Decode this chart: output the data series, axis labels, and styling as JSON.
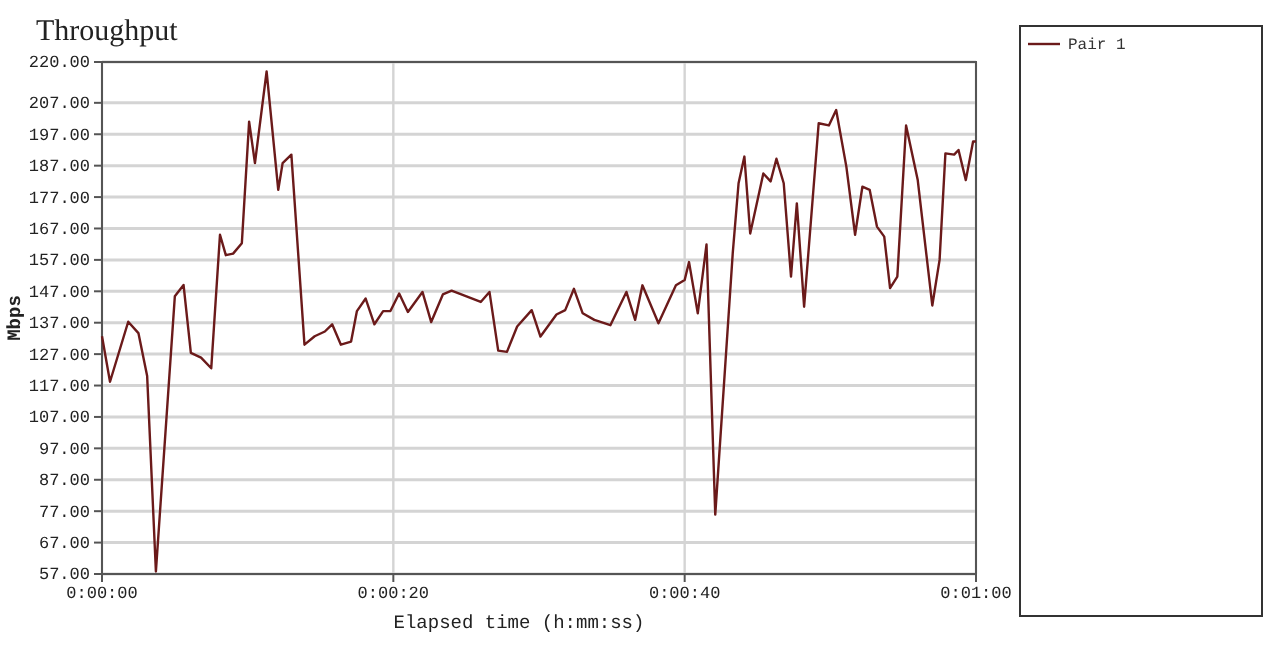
{
  "chart_data": {
    "type": "line",
    "title": "Throughput",
    "xlabel": "Elapsed time (h:mm:ss)",
    "ylabel": "Mbps",
    "xlim": [
      0,
      60
    ],
    "xticks": [
      {
        "value": 0,
        "label": "0:00:00"
      },
      {
        "value": 20,
        "label": "0:00:20"
      },
      {
        "value": 40,
        "label": "0:00:40"
      },
      {
        "value": 60,
        "label": "0:01:00"
      }
    ],
    "ylim": [
      57,
      220
    ],
    "yticks": [
      {
        "value": 57,
        "label": "57.00"
      },
      {
        "value": 67,
        "label": "67.00"
      },
      {
        "value": 77,
        "label": "77.00"
      },
      {
        "value": 87,
        "label": "87.00"
      },
      {
        "value": 97,
        "label": "97.00"
      },
      {
        "value": 107,
        "label": "107.00"
      },
      {
        "value": 117,
        "label": "117.00"
      },
      {
        "value": 127,
        "label": "127.00"
      },
      {
        "value": 137,
        "label": "137.00"
      },
      {
        "value": 147,
        "label": "147.00"
      },
      {
        "value": 157,
        "label": "157.00"
      },
      {
        "value": 167,
        "label": "167.00"
      },
      {
        "value": 177,
        "label": "177.00"
      },
      {
        "value": 187,
        "label": "187.00"
      },
      {
        "value": 197,
        "label": "197.00"
      },
      {
        "value": 207,
        "label": "207.00"
      },
      {
        "value": 220,
        "label": "220.00"
      }
    ],
    "grid": true,
    "legend": "right",
    "marker": "none",
    "line_style": "solid",
    "series": [
      {
        "name": "Pair 1",
        "color": "#6b1a1a",
        "x": [
          0,
          0.55,
          1.8,
          2.5,
          3.1,
          3.7,
          5,
          5.6,
          6.1,
          6.8,
          7.5,
          8.1,
          8.5,
          9,
          9.6,
          10.1,
          10.5,
          11.3,
          12.1,
          12.4,
          13,
          13.9,
          14.6,
          15.3,
          15.8,
          16.4,
          17.1,
          17.5,
          18.1,
          18.7,
          19.3,
          19.8,
          20.4,
          21,
          22,
          22.6,
          23.4,
          24,
          26,
          26.6,
          27.2,
          27.8,
          28.5,
          29.5,
          30.1,
          31.2,
          31.8,
          32.4,
          33,
          33.8,
          34.9,
          36,
          36.6,
          37.1,
          38.2,
          39.4,
          40,
          40.3,
          40.9,
          41.5,
          42.1,
          43.3,
          43.7,
          44.1,
          44.5,
          45,
          45.4,
          45.9,
          46.3,
          46.8,
          47.3,
          47.7,
          48.2,
          49.2,
          49.9,
          50.4,
          51.1,
          51.7,
          52.2,
          52.7,
          53.2,
          53.7,
          54.1,
          54.6,
          55.2,
          56,
          57,
          57.5,
          57.9,
          58.5,
          58.8,
          59.3,
          59.8,
          60
        ],
        "values": [
          132.7,
          118.2,
          137.3,
          133.7,
          120,
          57.8,
          145.4,
          149,
          127.4,
          125.9,
          122.5,
          165,
          158.5,
          159,
          162.3,
          201,
          187.8,
          217,
          179.3,
          187.8,
          190.5,
          130,
          132.7,
          134.2,
          136.5,
          130,
          131,
          140.7,
          144.7,
          136.5,
          140.7,
          140.7,
          146.3,
          140.4,
          146.8,
          137.2,
          146,
          147.2,
          143.6,
          146.8,
          128.1,
          127.7,
          135.8,
          141,
          132.6,
          139.6,
          141,
          147.8,
          140,
          137.9,
          136.2,
          146.8,
          137.9,
          148.9,
          136.8,
          148.9,
          150.6,
          156.3,
          140,
          161.9,
          75.9,
          159.1,
          181.4,
          189.9,
          165.4,
          176,
          184.5,
          182,
          189.2,
          181.4,
          151.7,
          175,
          142.1,
          200.5,
          199.8,
          204.7,
          186.7,
          165,
          180.3,
          179.3,
          167.6,
          164.4,
          148,
          151.7,
          199.8,
          182.4,
          142.5,
          157,
          190.9,
          190.5,
          192,
          182.4,
          194.7,
          194.7
        ]
      }
    ]
  }
}
